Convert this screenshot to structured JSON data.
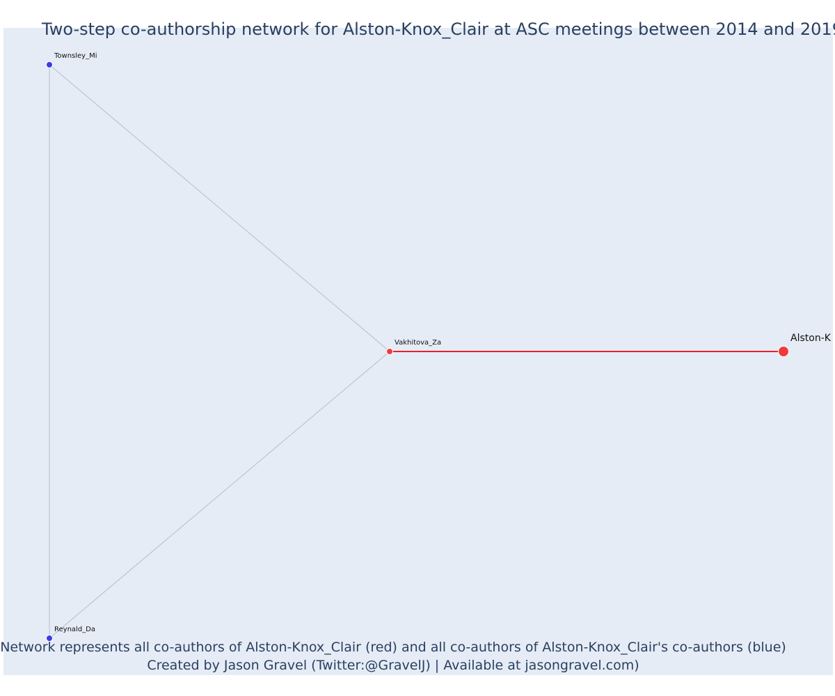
{
  "title": "Two-step co-authorship network for Alston-Knox_Clair at ASC meetings between 2014 and 2019",
  "caption_line1": "Network represents all co-authors of Alston-Knox_Clair (red) and all co-authors of Alston-Knox_Clair's co-authors (blue)",
  "caption_line2": "Created by Jason Gravel (Twitter:@GravelJ) | Available at jasongravel.com)",
  "colors": {
    "background": "#e5ecf6",
    "title_text": "#2a3f5f",
    "ego_node": "#ef3b3b",
    "first_degree_node": "#ef3b3b",
    "second_degree_node": "#3a3ae8",
    "ego_edge": "#e8212a",
    "other_edge": "#b8bccb"
  },
  "nodes": [
    {
      "id": "alston",
      "label": "Alston-K",
      "role": "ego",
      "color": "#ef3b3b"
    },
    {
      "id": "vakhitova",
      "label": "Vakhitova_Za",
      "role": "first_degree",
      "color": "#ef3b3b"
    },
    {
      "id": "townsley",
      "label": "Townsley_Mi",
      "role": "second_degree",
      "color": "#3a3ae8"
    },
    {
      "id": "reynald",
      "label": "Reynald_Da",
      "role": "second_degree",
      "color": "#3a3ae8"
    }
  ],
  "edges": [
    {
      "source": "vakhitova",
      "target": "alston",
      "type": "ego"
    },
    {
      "source": "townsley",
      "target": "vakhitova",
      "type": "other"
    },
    {
      "source": "reynald",
      "target": "vakhitova",
      "type": "other"
    },
    {
      "source": "townsley",
      "target": "reynald",
      "type": "other"
    }
  ]
}
